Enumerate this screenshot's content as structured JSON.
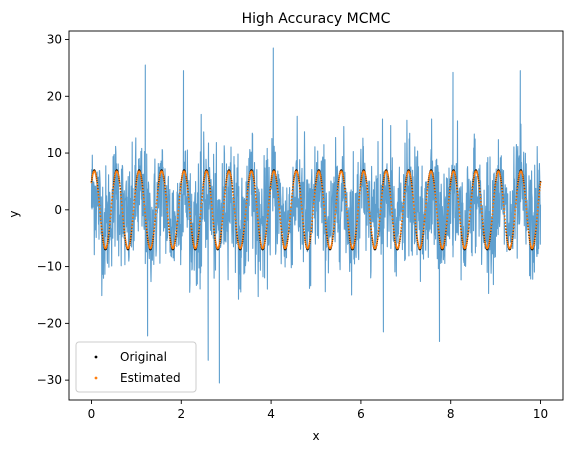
{
  "chart_data": {
    "type": "scatter",
    "title": "High Accuracy MCMC",
    "xlabel": "x",
    "ylabel": "y",
    "xlim": [
      -0.5,
      10.5
    ],
    "ylim": [
      -33.5,
      31.5
    ],
    "xticks": [
      0,
      2,
      4,
      6,
      8,
      10
    ],
    "yticks": [
      -30,
      -20,
      -10,
      0,
      10,
      20,
      30
    ],
    "grid": false,
    "legend": "lower-left",
    "noisy_data": {
      "type": "line",
      "color": "#5f9fce",
      "x_range": [
        0,
        10
      ],
      "envelope_typical": [
        -12,
        14
      ],
      "extreme_points": [
        {
          "x": 1.2,
          "y": 25.5
        },
        {
          "x": 4.05,
          "y": 28.5
        },
        {
          "x": 2.05,
          "y": 24.5
        },
        {
          "x": 8.05,
          "y": 24.2
        },
        {
          "x": 9.55,
          "y": 24.5
        },
        {
          "x": 2.6,
          "y": -26.5
        },
        {
          "x": 2.85,
          "y": -30.5
        },
        {
          "x": 1.25,
          "y": -22.2
        },
        {
          "x": 6.5,
          "y": -21.5
        },
        {
          "x": 7.75,
          "y": -23.2
        }
      ]
    },
    "series": [
      {
        "name": "Original",
        "color": "#000000",
        "model": "sine",
        "amplitude": 7,
        "period": 0.5,
        "phase_deg": 45,
        "x_range": [
          0,
          10
        ]
      },
      {
        "name": "Estimated",
        "color": "#ff7f0e",
        "model": "sine",
        "amplitude": 6.8,
        "period": 0.5,
        "phase_deg": 45,
        "x_range": [
          0,
          10
        ]
      }
    ]
  }
}
